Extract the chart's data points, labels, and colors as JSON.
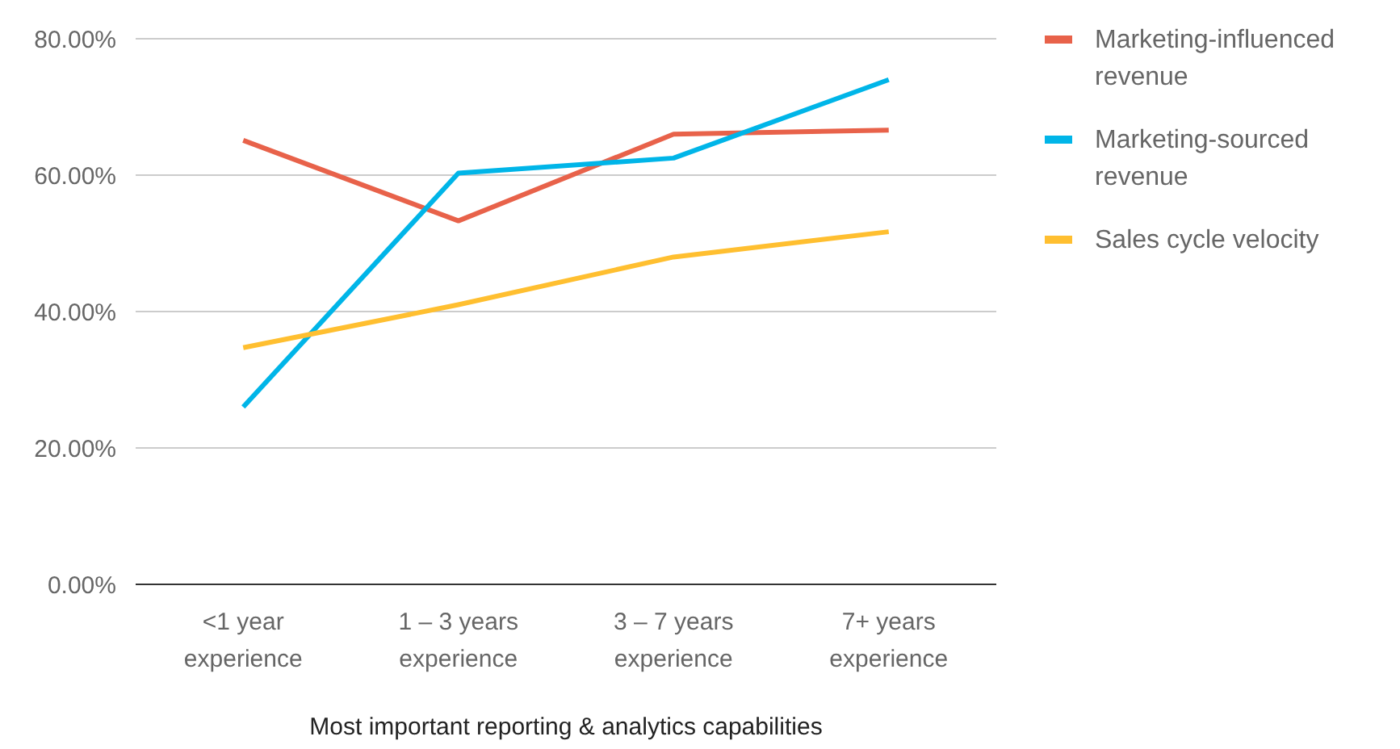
{
  "chart_data": {
    "type": "line",
    "xlabel": "Most important reporting & analytics capabilities",
    "categories": [
      "<1 year experience",
      "1 – 3 years experience",
      "3 – 7 years experience",
      "7+ years experience"
    ],
    "series": [
      {
        "name": "Marketing-influenced revenue",
        "color": "#e8624a",
        "values": [
          65.1,
          53.3,
          66.0,
          66.6
        ]
      },
      {
        "name": "Marketing-sourced revenue",
        "color": "#00b5e8",
        "values": [
          26.0,
          60.3,
          62.5,
          74.0
        ]
      },
      {
        "name": "Sales cycle velocity",
        "color": "#ffbf30",
        "values": [
          34.7,
          41.0,
          48.0,
          51.7
        ]
      }
    ],
    "ylim": [
      0,
      80
    ],
    "yticks": [
      {
        "value": 0,
        "label": "0.00%"
      },
      {
        "value": 20,
        "label": "20.00%"
      },
      {
        "value": 40,
        "label": "40.00%"
      },
      {
        "value": 60,
        "label": "60.00%"
      },
      {
        "value": 80,
        "label": "80.00%"
      }
    ],
    "grid": "y",
    "legend": "right",
    "marker": "none",
    "line_style": "solid"
  }
}
